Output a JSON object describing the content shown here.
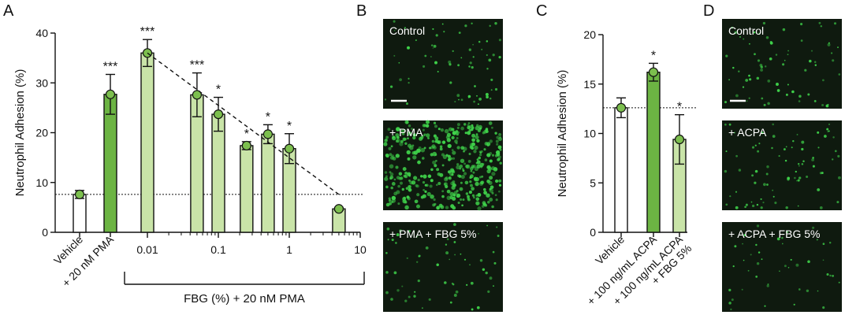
{
  "panels": {
    "A": "A",
    "B": "B",
    "C": "C",
    "D": "D"
  },
  "colors": {
    "dark_green": "#6cb443",
    "light_green": "#c9e4a8",
    "white_bar": "#ffffff",
    "marker_fill": "#7cbf4e",
    "micrograph_bg": "#0f1a0f",
    "cell_green": "#3fd24a"
  },
  "chart_data": [
    {
      "type": "bar",
      "panel": "A",
      "ylabel": "Neutrophil Adhesion (%)",
      "ylim": [
        0,
        40
      ],
      "yticks": [
        0,
        10,
        20,
        30,
        40
      ],
      "x_scale": "log",
      "xticks": [
        0.01,
        0.1,
        1,
        10
      ],
      "xtick_labels": [
        "0.01",
        "0.1",
        "1",
        "10"
      ],
      "xgroup_label": "FBG (%) + 20 nM PMA",
      "baseline": 7.6,
      "categories": [
        "Vehicle",
        "+ 20 nM PMA"
      ],
      "series": [
        {
          "values": [
            {
              "label": "Vehicle",
              "x": null,
              "value": 7.6,
              "err": 0.8,
              "sig": "",
              "style": "white"
            },
            {
              "label": "+ 20 nM PMA",
              "x": null,
              "value": 27.7,
              "err": 4.0,
              "sig": "***",
              "style": "dark"
            },
            {
              "label": "",
              "x": 0.01,
              "value": 36.0,
              "err": 2.7,
              "sig": "***",
              "style": "light"
            },
            {
              "label": "",
              "x": 0.05,
              "value": 27.6,
              "err": 4.4,
              "sig": "***",
              "style": "light"
            },
            {
              "label": "",
              "x": 0.1,
              "value": 23.7,
              "err": 3.4,
              "sig": "*",
              "style": "light"
            },
            {
              "label": "",
              "x": 0.25,
              "value": 17.4,
              "err": 0.8,
              "sig": "*",
              "style": "light"
            },
            {
              "label": "",
              "x": 0.5,
              "value": 19.7,
              "err": 1.9,
              "sig": "*",
              "style": "light"
            },
            {
              "label": "",
              "x": 1,
              "value": 16.8,
              "err": 3.0,
              "sig": "*",
              "style": "light"
            },
            {
              "label": "",
              "x": 5,
              "value": 4.7,
              "err": 0.3,
              "sig": "",
              "style": "light"
            }
          ]
        }
      ],
      "trend_line": {
        "from_x": 0.01,
        "from_y": 36.0,
        "to_x": 5,
        "to_y": 7.6
      }
    },
    {
      "type": "bar",
      "panel": "C",
      "ylabel": "Neutrophil Adhesion (%)",
      "ylim": [
        0,
        20
      ],
      "yticks": [
        0,
        5,
        10,
        15,
        20
      ],
      "baseline": 12.6,
      "categories": [
        "Vehicle",
        "+ 100 ng/mL ACPA",
        "+ 100 ng/mL ACPA\n+ FBG 5%"
      ],
      "series": [
        {
          "values": [
            {
              "label": "Vehicle",
              "value": 12.6,
              "err": 1.0,
              "sig": "",
              "style": "white"
            },
            {
              "label": "+ 100 ng/mL ACPA",
              "value": 16.2,
              "err": 0.9,
              "sig": "*",
              "style": "dark"
            },
            {
              "label": "+ 100 ng/mL ACPA",
              "label2": "+ FBG 5%",
              "value": 9.4,
              "err": 2.5,
              "sig": "*",
              "style": "light"
            }
          ]
        }
      ]
    }
  ],
  "micrographs": {
    "B": [
      {
        "label": "Control",
        "scale_bar": true,
        "density": 70
      },
      {
        "label": "+ PMA",
        "scale_bar": false,
        "density": 520
      },
      {
        "label": "+ PMA + FBG 5%",
        "scale_bar": false,
        "density": 60
      }
    ],
    "D": [
      {
        "label": "Control",
        "scale_bar": true,
        "density": 70
      },
      {
        "label": "+ ACPA",
        "scale_bar": false,
        "density": 80
      },
      {
        "label": "+ ACPA + FBG 5%",
        "scale_bar": false,
        "density": 45
      }
    ]
  }
}
